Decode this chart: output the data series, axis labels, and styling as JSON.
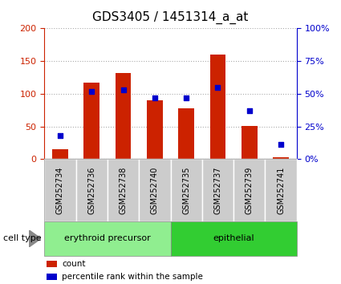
{
  "title": "GDS3405 / 1451314_a_at",
  "samples": [
    "GSM252734",
    "GSM252736",
    "GSM252738",
    "GSM252740",
    "GSM252735",
    "GSM252737",
    "GSM252739",
    "GSM252741"
  ],
  "counts": [
    15,
    117,
    132,
    90,
    78,
    160,
    51,
    3
  ],
  "percentiles": [
    18,
    52,
    53,
    47,
    47,
    55,
    37,
    11
  ],
  "groups": [
    {
      "label": "erythroid precursor",
      "start": 0,
      "end": 4,
      "color": "#90ee90"
    },
    {
      "label": "epithelial",
      "start": 4,
      "end": 8,
      "color": "#32cd32"
    }
  ],
  "bar_color": "#cc2200",
  "dot_color": "#0000cc",
  "ylim_left": [
    0,
    200
  ],
  "ylim_right": [
    0,
    100
  ],
  "yticks_left": [
    0,
    50,
    100,
    150,
    200
  ],
  "yticks_right": [
    0,
    25,
    50,
    75,
    100
  ],
  "yticklabels_right": [
    "0%",
    "25%",
    "50%",
    "75%",
    "100%"
  ],
  "left_tick_color": "#cc2200",
  "right_tick_color": "#0000cc",
  "cell_type_label": "cell type",
  "legend_count": "count",
  "legend_pct": "percentile rank within the sample",
  "background_color": "#ffffff",
  "plot_bg": "#ffffff",
  "grid_color": "#aaaaaa",
  "bar_width": 0.5,
  "title_fontsize": 11,
  "tick_fontsize": 8,
  "label_fontsize": 8,
  "sample_box_color": "#cccccc",
  "sample_label_fontsize": 7
}
